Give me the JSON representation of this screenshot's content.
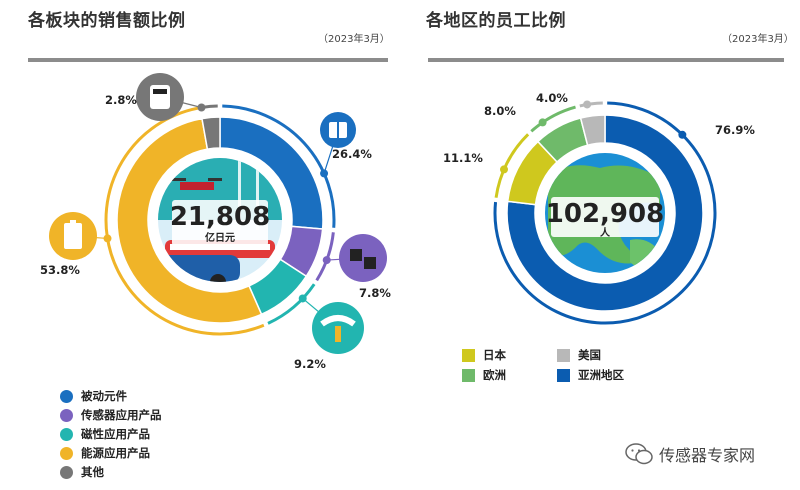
{
  "left": {
    "title": "各板块的销售额比例",
    "date": "（2023年3月）",
    "center_value": "21,808",
    "center_unit": "亿日元"
  },
  "right": {
    "title": "各地区的员工比例",
    "date": "（2023年3月）",
    "center_value": "102,908",
    "center_unit": "人"
  },
  "legend_left": [
    {
      "label": "被动元件",
      "color": "#1a6fc0"
    },
    {
      "label": "传感器应用产品",
      "color": "#7b62bf"
    },
    {
      "label": "磁性应用产品",
      "color": "#22b5b0"
    },
    {
      "label": "能源应用产品",
      "color": "#f0b428"
    },
    {
      "label": "其他",
      "color": "#777777"
    }
  ],
  "legend_right": [
    {
      "label": "日本",
      "color": "#cfc81e"
    },
    {
      "label": "美国",
      "color": "#b8b8b8"
    },
    {
      "label": "欧洲",
      "color": "#6fba6a"
    },
    {
      "label": "亚洲地区",
      "color": "#0b5cb0"
    }
  ],
  "watermark": "传感器专家网",
  "chart_data": [
    {
      "type": "pie",
      "title": "各板块的销售额比例",
      "categories": [
        "被动元件",
        "传感器应用产品",
        "磁性应用产品",
        "能源应用产品",
        "其他"
      ],
      "values": [
        26.4,
        7.8,
        9.2,
        53.8,
        2.8
      ],
      "value_labels": [
        "26.4%",
        "7.8%",
        "9.2%",
        "53.8%",
        "2.8%"
      ],
      "colors": [
        "#1a6fc0",
        "#7b62bf",
        "#22b5b0",
        "#f0b428",
        "#777777"
      ],
      "total": "21,808",
      "total_unit": "亿日元",
      "legend": "bottom-left"
    },
    {
      "type": "pie",
      "title": "各地区的员工比例",
      "categories": [
        "亚洲地区",
        "日本",
        "欧洲",
        "美国"
      ],
      "values": [
        76.9,
        11.1,
        8.0,
        4.0
      ],
      "value_labels": [
        "76.9%",
        "11.1%",
        "8.0%",
        "4.0%"
      ],
      "colors": [
        "#0b5cb0",
        "#cfc81e",
        "#6fba6a",
        "#b8b8b8"
      ],
      "total": "102,908",
      "total_unit": "人",
      "legend": "bottom"
    }
  ]
}
